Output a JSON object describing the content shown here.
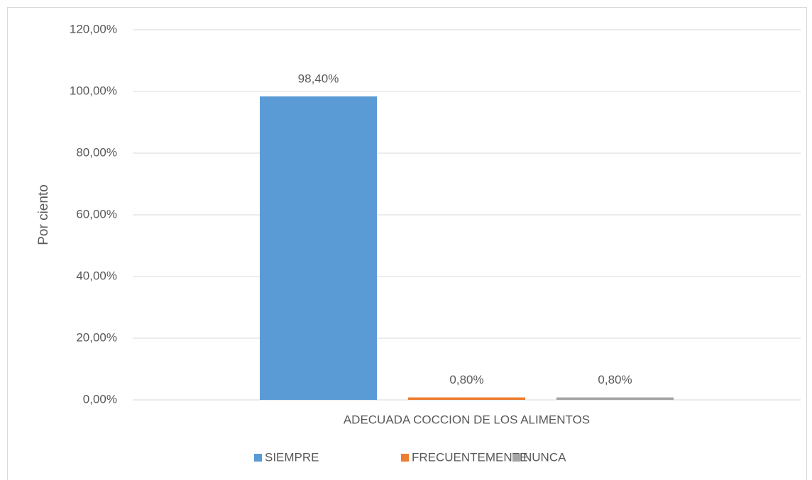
{
  "chart_data": {
    "type": "bar",
    "y_label": "Por ciento",
    "categories": [
      "ADECUADA COCCION DE LOS ALIMENTOS"
    ],
    "series": [
      {
        "name": "SIEMPRE",
        "color": "#5b9bd5",
        "values": [
          98.4
        ],
        "value_labels": [
          "98,40%"
        ]
      },
      {
        "name": "FRECUENTEMENTE",
        "color": "#ed7d31",
        "values": [
          0.8
        ],
        "value_labels": [
          "0,80%"
        ]
      },
      {
        "name": "NUNCA",
        "color": "#a5a5a5",
        "values": [
          0.8
        ],
        "value_labels": [
          "0,80%"
        ]
      }
    ],
    "ylim": [
      0,
      120
    ],
    "yticks": [
      {
        "value": 0,
        "label": "0,00%"
      },
      {
        "value": 20,
        "label": "20,00%"
      },
      {
        "value": 40,
        "label": "40,00%"
      },
      {
        "value": 60,
        "label": "60,00%"
      },
      {
        "value": 80,
        "label": "80,00%"
      },
      {
        "value": 100,
        "label": "100,00%"
      },
      {
        "value": 120,
        "label": "120,00%"
      }
    ],
    "grid": true,
    "legend": "bottom"
  }
}
